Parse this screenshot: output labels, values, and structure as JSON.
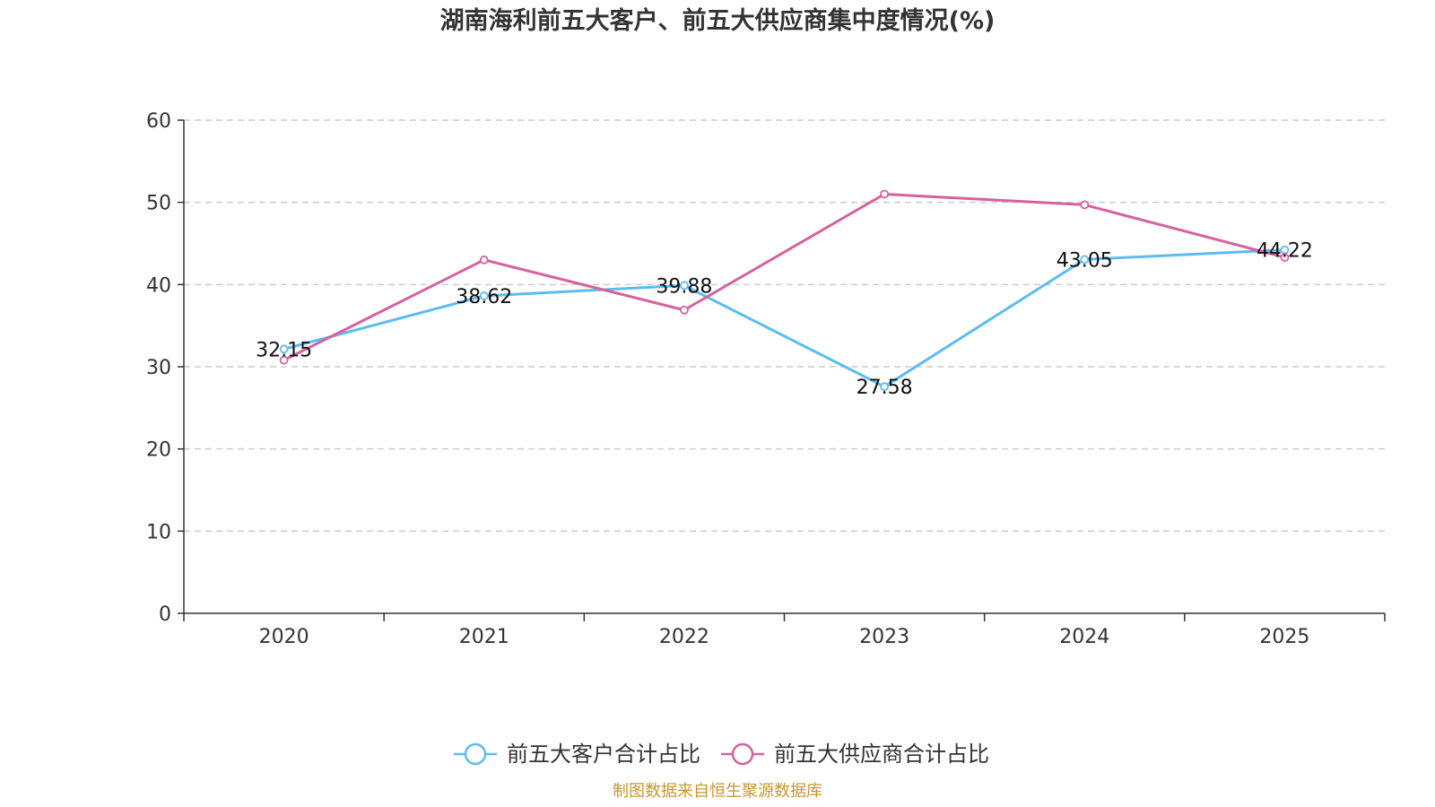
{
  "colors": {
    "customers": "#5bbcf0",
    "suppliers": "#d4629f",
    "source": "#c8962d"
  },
  "chart_data": {
    "type": "line",
    "title": "湖南海利前五大客户、前五大供应商集中度情况(%)",
    "categories": [
      "2020",
      "2021",
      "2022",
      "2023",
      "2024",
      "2025"
    ],
    "ylim": [
      0,
      60
    ],
    "yticks": [
      "0",
      "10",
      "20",
      "30",
      "40",
      "50",
      "60"
    ],
    "grid": true,
    "legend_position": "bottom-center",
    "series": [
      {
        "name": "前五大客户合计占比",
        "values": [
          32.15,
          38.62,
          39.88,
          27.58,
          43.05,
          44.22
        ],
        "labels": [
          "32.15",
          "38.62",
          "39.88",
          "27.58",
          "43.05",
          "44.22"
        ],
        "color_key": "customers"
      },
      {
        "name": "前五大供应商合计占比",
        "values": [
          30.8,
          43.0,
          36.9,
          51.0,
          49.7,
          43.3
        ],
        "color_key": "suppliers"
      }
    ]
  },
  "source": "制图数据来自恒生聚源数据库"
}
